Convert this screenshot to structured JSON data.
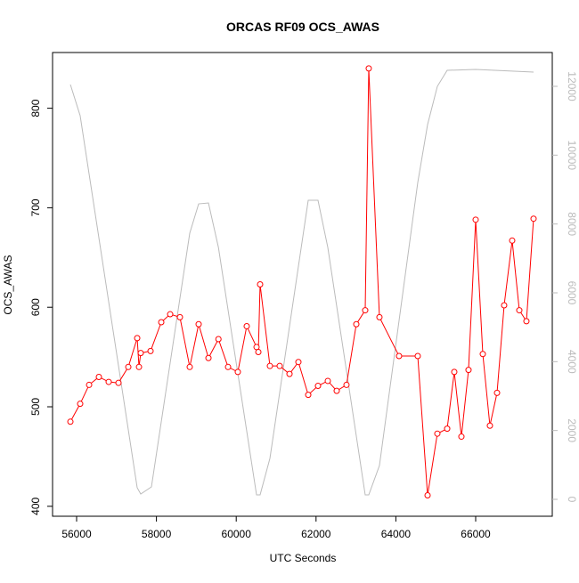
{
  "chart_data": {
    "type": "line",
    "title": "ORCAS RF09 OCS_AWAS",
    "x_label": "UTC Seconds",
    "y_label": "OCS_AWAS",
    "xlim": [
      55397,
      67920
    ],
    "ylim": [
      390,
      856
    ],
    "y2lim": [
      -491,
      12982
    ],
    "xticks": [
      56000,
      58000,
      60000,
      62000,
      64000,
      66000
    ],
    "yticks": [
      400,
      500,
      600,
      700,
      800
    ],
    "y2ticks": [
      0,
      2000,
      4000,
      6000,
      8000,
      10000,
      12000
    ],
    "y2_tick_color": "#bbbbbb",
    "series": [
      {
        "color": "#bbbbbb",
        "axis": "y2",
        "markers": false,
        "x": [
          55844,
          56089,
          57518,
          57607,
          57875,
          58835,
          59058,
          59304,
          59554,
          60509,
          60598,
          60844,
          61804,
          62049,
          62295,
          63232,
          63321,
          63589,
          64549,
          64795,
          65040,
          65286,
          66000,
          67451
        ],
        "values": [
          12051,
          11146,
          336,
          155,
          362,
          7732,
          8585,
          8611,
          7318,
          129,
          129,
          1190,
          8689,
          8689,
          7318,
          129,
          129,
          983,
          9206,
          10887,
          11999,
          12464,
          12490,
          12413
        ]
      },
      {
        "color": "#ff0000",
        "axis": "y",
        "markers": true,
        "x": [
          55844,
          56089,
          56313,
          56558,
          56804,
          57049,
          57295,
          57518,
          57563,
          57607,
          57853,
          58121,
          58344,
          58589,
          58835,
          59058,
          59304,
          59554,
          59795,
          60040,
          60263,
          60509,
          60554,
          60598,
          60844,
          61089,
          61335,
          61558,
          61804,
          62049,
          62295,
          62518,
          62763,
          63009,
          63232,
          63321,
          63589,
          64080,
          64549,
          64795,
          65040,
          65286,
          65464,
          65643,
          65821,
          66000,
          66179,
          66357,
          66536,
          66714,
          66915,
          67094,
          67272,
          67451
        ],
        "values": [
          485,
          503,
          522,
          530,
          525,
          524,
          540,
          569,
          540,
          554,
          556,
          585,
          593,
          590,
          540,
          583,
          549,
          568,
          540,
          535,
          581,
          560,
          555,
          623,
          541,
          541,
          533,
          545,
          512,
          521,
          526,
          516,
          522,
          583,
          597,
          840,
          590,
          551,
          551,
          411,
          473,
          478,
          535,
          470,
          537,
          688,
          553,
          481,
          514,
          602,
          667,
          597,
          586,
          689
        ]
      }
    ]
  }
}
